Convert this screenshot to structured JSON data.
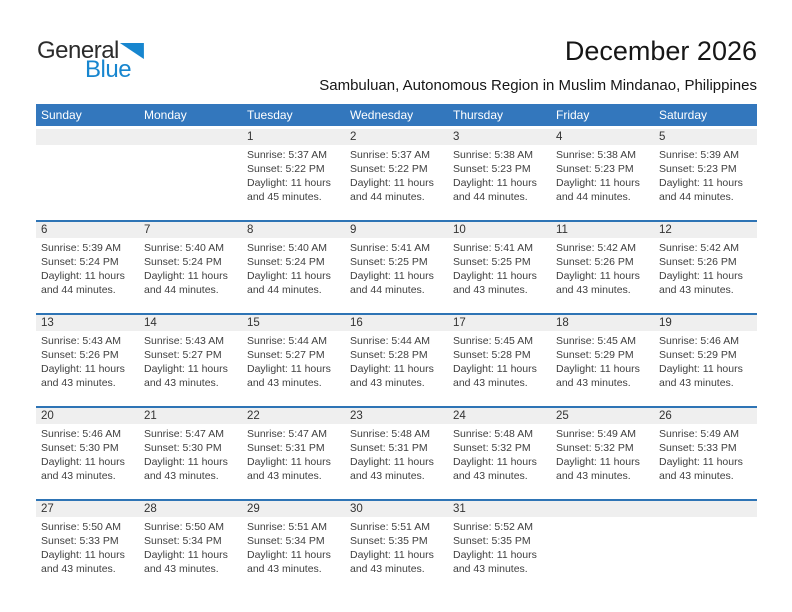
{
  "logo": {
    "part1": "General",
    "part2": "Blue"
  },
  "header": {
    "title": "December 2026",
    "subtitle": "Sambuluan, Autonomous Region in Muslim Mindanao, Philippines"
  },
  "weekdays": [
    "Sunday",
    "Monday",
    "Tuesday",
    "Wednesday",
    "Thursday",
    "Friday",
    "Saturday"
  ],
  "colors": {
    "header_blue": "#3377bd",
    "separator_blue": "#2e74b5",
    "number_band_gray": "#efefef",
    "logo_blue": "#1786cf",
    "text_dark": "#3f3f3f"
  },
  "calendar": {
    "weeks": [
      [
        null,
        null,
        {
          "day": "1",
          "sunrise": "Sunrise: 5:37 AM",
          "sunset": "Sunset: 5:22 PM",
          "daylight": "Daylight: 11 hours and 45 minutes."
        },
        {
          "day": "2",
          "sunrise": "Sunrise: 5:37 AM",
          "sunset": "Sunset: 5:22 PM",
          "daylight": "Daylight: 11 hours and 44 minutes."
        },
        {
          "day": "3",
          "sunrise": "Sunrise: 5:38 AM",
          "sunset": "Sunset: 5:23 PM",
          "daylight": "Daylight: 11 hours and 44 minutes."
        },
        {
          "day": "4",
          "sunrise": "Sunrise: 5:38 AM",
          "sunset": "Sunset: 5:23 PM",
          "daylight": "Daylight: 11 hours and 44 minutes."
        },
        {
          "day": "5",
          "sunrise": "Sunrise: 5:39 AM",
          "sunset": "Sunset: 5:23 PM",
          "daylight": "Daylight: 11 hours and 44 minutes."
        }
      ],
      [
        {
          "day": "6",
          "sunrise": "Sunrise: 5:39 AM",
          "sunset": "Sunset: 5:24 PM",
          "daylight": "Daylight: 11 hours and 44 minutes."
        },
        {
          "day": "7",
          "sunrise": "Sunrise: 5:40 AM",
          "sunset": "Sunset: 5:24 PM",
          "daylight": "Daylight: 11 hours and 44 minutes."
        },
        {
          "day": "8",
          "sunrise": "Sunrise: 5:40 AM",
          "sunset": "Sunset: 5:24 PM",
          "daylight": "Daylight: 11 hours and 44 minutes."
        },
        {
          "day": "9",
          "sunrise": "Sunrise: 5:41 AM",
          "sunset": "Sunset: 5:25 PM",
          "daylight": "Daylight: 11 hours and 44 minutes."
        },
        {
          "day": "10",
          "sunrise": "Sunrise: 5:41 AM",
          "sunset": "Sunset: 5:25 PM",
          "daylight": "Daylight: 11 hours and 43 minutes."
        },
        {
          "day": "11",
          "sunrise": "Sunrise: 5:42 AM",
          "sunset": "Sunset: 5:26 PM",
          "daylight": "Daylight: 11 hours and 43 minutes."
        },
        {
          "day": "12",
          "sunrise": "Sunrise: 5:42 AM",
          "sunset": "Sunset: 5:26 PM",
          "daylight": "Daylight: 11 hours and 43 minutes."
        }
      ],
      [
        {
          "day": "13",
          "sunrise": "Sunrise: 5:43 AM",
          "sunset": "Sunset: 5:26 PM",
          "daylight": "Daylight: 11 hours and 43 minutes."
        },
        {
          "day": "14",
          "sunrise": "Sunrise: 5:43 AM",
          "sunset": "Sunset: 5:27 PM",
          "daylight": "Daylight: 11 hours and 43 minutes."
        },
        {
          "day": "15",
          "sunrise": "Sunrise: 5:44 AM",
          "sunset": "Sunset: 5:27 PM",
          "daylight": "Daylight: 11 hours and 43 minutes."
        },
        {
          "day": "16",
          "sunrise": "Sunrise: 5:44 AM",
          "sunset": "Sunset: 5:28 PM",
          "daylight": "Daylight: 11 hours and 43 minutes."
        },
        {
          "day": "17",
          "sunrise": "Sunrise: 5:45 AM",
          "sunset": "Sunset: 5:28 PM",
          "daylight": "Daylight: 11 hours and 43 minutes."
        },
        {
          "day": "18",
          "sunrise": "Sunrise: 5:45 AM",
          "sunset": "Sunset: 5:29 PM",
          "daylight": "Daylight: 11 hours and 43 minutes."
        },
        {
          "day": "19",
          "sunrise": "Sunrise: 5:46 AM",
          "sunset": "Sunset: 5:29 PM",
          "daylight": "Daylight: 11 hours and 43 minutes."
        }
      ],
      [
        {
          "day": "20",
          "sunrise": "Sunrise: 5:46 AM",
          "sunset": "Sunset: 5:30 PM",
          "daylight": "Daylight: 11 hours and 43 minutes."
        },
        {
          "day": "21",
          "sunrise": "Sunrise: 5:47 AM",
          "sunset": "Sunset: 5:30 PM",
          "daylight": "Daylight: 11 hours and 43 minutes."
        },
        {
          "day": "22",
          "sunrise": "Sunrise: 5:47 AM",
          "sunset": "Sunset: 5:31 PM",
          "daylight": "Daylight: 11 hours and 43 minutes."
        },
        {
          "day": "23",
          "sunrise": "Sunrise: 5:48 AM",
          "sunset": "Sunset: 5:31 PM",
          "daylight": "Daylight: 11 hours and 43 minutes."
        },
        {
          "day": "24",
          "sunrise": "Sunrise: 5:48 AM",
          "sunset": "Sunset: 5:32 PM",
          "daylight": "Daylight: 11 hours and 43 minutes."
        },
        {
          "day": "25",
          "sunrise": "Sunrise: 5:49 AM",
          "sunset": "Sunset: 5:32 PM",
          "daylight": "Daylight: 11 hours and 43 minutes."
        },
        {
          "day": "26",
          "sunrise": "Sunrise: 5:49 AM",
          "sunset": "Sunset: 5:33 PM",
          "daylight": "Daylight: 11 hours and 43 minutes."
        }
      ],
      [
        {
          "day": "27",
          "sunrise": "Sunrise: 5:50 AM",
          "sunset": "Sunset: 5:33 PM",
          "daylight": "Daylight: 11 hours and 43 minutes."
        },
        {
          "day": "28",
          "sunrise": "Sunrise: 5:50 AM",
          "sunset": "Sunset: 5:34 PM",
          "daylight": "Daylight: 11 hours and 43 minutes."
        },
        {
          "day": "29",
          "sunrise": "Sunrise: 5:51 AM",
          "sunset": "Sunset: 5:34 PM",
          "daylight": "Daylight: 11 hours and 43 minutes."
        },
        {
          "day": "30",
          "sunrise": "Sunrise: 5:51 AM",
          "sunset": "Sunset: 5:35 PM",
          "daylight": "Daylight: 11 hours and 43 minutes."
        },
        {
          "day": "31",
          "sunrise": "Sunrise: 5:52 AM",
          "sunset": "Sunset: 5:35 PM",
          "daylight": "Daylight: 11 hours and 43 minutes."
        },
        null,
        null
      ]
    ]
  }
}
